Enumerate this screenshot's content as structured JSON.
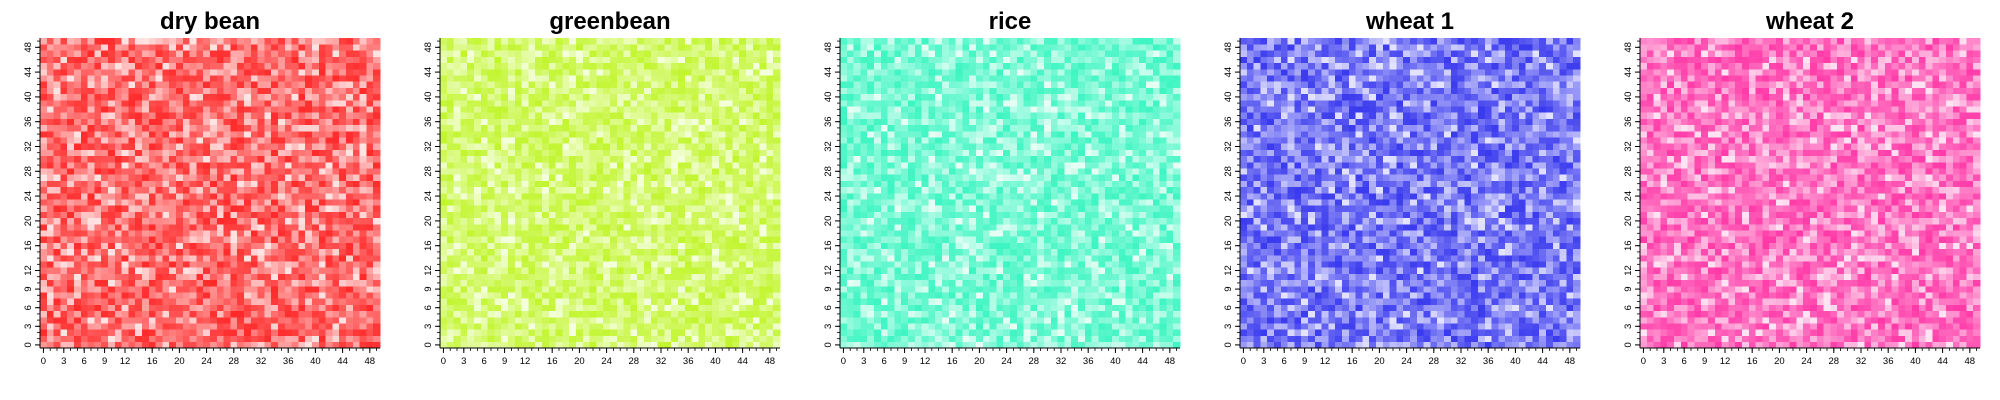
{
  "chart_data": [
    {
      "type": "heatmap",
      "title": "dry bean",
      "grid_size": [
        50,
        50
      ],
      "xlim": [
        0,
        49
      ],
      "ylim": [
        0,
        49
      ],
      "x_tick_labels": [
        "0",
        "3",
        "6",
        "9",
        "12",
        "16",
        "20",
        "24",
        "28",
        "32",
        "36",
        "40",
        "44",
        "48"
      ],
      "y_tick_labels": [
        "0",
        "3",
        "6",
        "9",
        "12",
        "16",
        "20",
        "24",
        "28",
        "32",
        "36",
        "40",
        "44",
        "48"
      ],
      "color_low": "#ffe6e6",
      "color_high": "#ff2a2a",
      "legend": "none",
      "seed": 11
    },
    {
      "type": "heatmap",
      "title": "greenbean",
      "grid_size": [
        50,
        50
      ],
      "xlim": [
        0,
        49
      ],
      "ylim": [
        0,
        49
      ],
      "x_tick_labels": [
        "0",
        "3",
        "6",
        "9",
        "12",
        "16",
        "20",
        "24",
        "28",
        "32",
        "36",
        "40",
        "44",
        "48"
      ],
      "y_tick_labels": [
        "0",
        "3",
        "6",
        "9",
        "12",
        "16",
        "20",
        "24",
        "28",
        "32",
        "36",
        "40",
        "44",
        "48"
      ],
      "color_low": "#f5ffe0",
      "color_high": "#c2f52e",
      "legend": "none",
      "seed": 23
    },
    {
      "type": "heatmap",
      "title": "rice",
      "grid_size": [
        50,
        50
      ],
      "xlim": [
        0,
        49
      ],
      "ylim": [
        0,
        49
      ],
      "x_tick_labels": [
        "0",
        "3",
        "6",
        "9",
        "12",
        "16",
        "20",
        "24",
        "28",
        "32",
        "36",
        "40",
        "44",
        "48"
      ],
      "y_tick_labels": [
        "0",
        "3",
        "6",
        "9",
        "12",
        "16",
        "20",
        "24",
        "28",
        "32",
        "36",
        "40",
        "44",
        "48"
      ],
      "color_low": "#e8fff6",
      "color_high": "#3df5c2",
      "legend": "none",
      "seed": 37
    },
    {
      "type": "heatmap",
      "title": "wheat 1",
      "grid_size": [
        50,
        50
      ],
      "xlim": [
        0,
        49
      ],
      "ylim": [
        0,
        49
      ],
      "x_tick_labels": [
        "0",
        "3",
        "6",
        "9",
        "12",
        "16",
        "20",
        "24",
        "28",
        "32",
        "36",
        "40",
        "44",
        "48"
      ],
      "y_tick_labels": [
        "0",
        "3",
        "6",
        "9",
        "12",
        "16",
        "20",
        "24",
        "28",
        "32",
        "36",
        "40",
        "44",
        "48"
      ],
      "color_low": "#e6e6ff",
      "color_high": "#3a3aee",
      "legend": "none",
      "seed": 53
    },
    {
      "type": "heatmap",
      "title": "wheat 2",
      "grid_size": [
        50,
        50
      ],
      "xlim": [
        0,
        49
      ],
      "ylim": [
        0,
        49
      ],
      "x_tick_labels": [
        "0",
        "3",
        "6",
        "9",
        "12",
        "16",
        "20",
        "24",
        "28",
        "32",
        "36",
        "40",
        "44",
        "48"
      ],
      "y_tick_labels": [
        "0",
        "3",
        "6",
        "9",
        "12",
        "16",
        "20",
        "24",
        "28",
        "32",
        "36",
        "40",
        "44",
        "48"
      ],
      "color_low": "#ffe6f4",
      "color_high": "#ff3aa8",
      "legend": "none",
      "seed": 71
    }
  ]
}
